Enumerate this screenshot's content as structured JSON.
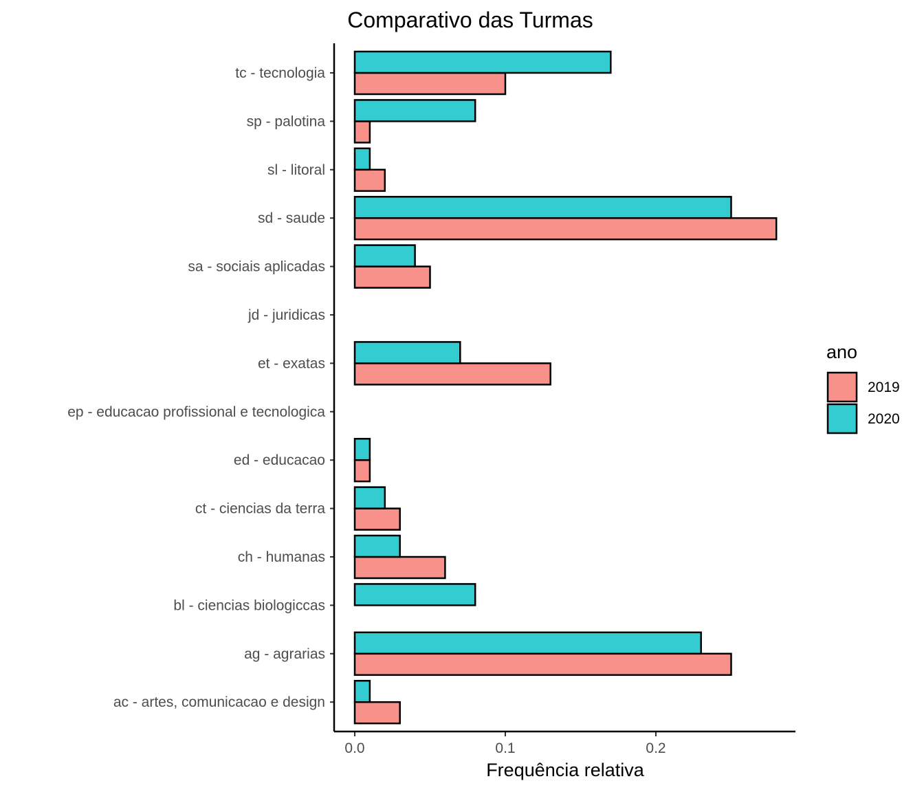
{
  "chart_data": {
    "type": "bar",
    "orientation": "horizontal",
    "title": "Comparativo das Turmas",
    "xlabel": "Frequência relativa",
    "ylabel": "",
    "xlim": [
      0,
      0.28
    ],
    "x_ticks": [
      0.0,
      0.1,
      0.2
    ],
    "x_tick_labels": [
      "0.0",
      "0.1",
      "0.2"
    ],
    "categories": [
      "ac - artes, comunicacao e design",
      "ag - agrarias",
      "bl - ciencias biologiccas",
      "ch - humanas",
      "ct - ciencias da terra",
      "ed - educacao",
      "ep - educacao profissional e tecnologica",
      "et - exatas",
      "jd - juridicas",
      "sa - sociais aplicadas",
      "sd - saude",
      "sl - litoral",
      "sp - palotina",
      "tc - tecnologia"
    ],
    "series": [
      {
        "name": "2019",
        "color": "#F8918A",
        "values": [
          0.03,
          0.25,
          0.0,
          0.06,
          0.03,
          0.01,
          0.0,
          0.13,
          0.0,
          0.05,
          0.28,
          0.02,
          0.01,
          0.1
        ]
      },
      {
        "name": "2020",
        "color": "#33CCD1",
        "values": [
          0.01,
          0.23,
          0.08,
          0.03,
          0.02,
          0.01,
          0.0,
          0.07,
          0.0,
          0.04,
          0.25,
          0.01,
          0.08,
          0.17
        ]
      }
    ],
    "legend": {
      "title": "ano",
      "position": "right"
    },
    "grid": false
  }
}
